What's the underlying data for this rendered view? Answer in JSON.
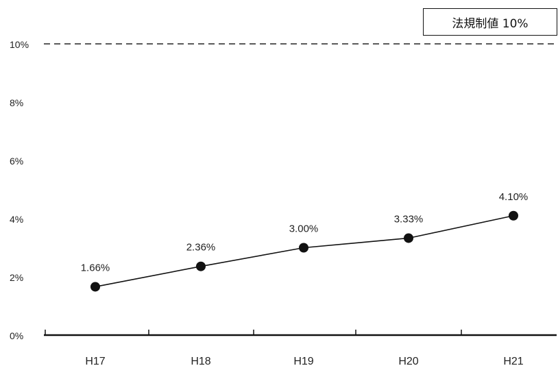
{
  "chart_data": {
    "type": "line",
    "title": "",
    "xlabel": "",
    "ylabel": "",
    "categories": [
      "H17",
      "H18",
      "H19",
      "H20",
      "H21"
    ],
    "series": [
      {
        "values": [
          1.66,
          2.36,
          3.0,
          3.33,
          4.1
        ],
        "labels": [
          "1.66%",
          "2.36%",
          "3.00%",
          "3.33%",
          "4.10%"
        ]
      }
    ],
    "yticks": [
      0,
      2,
      4,
      6,
      8,
      10
    ],
    "ytick_labels": [
      "0%",
      "2%",
      "4%",
      "6%",
      "8%",
      "10%"
    ],
    "ylim": [
      0,
      10
    ],
    "grid": false,
    "reference_line": {
      "value": 10,
      "style": "dashed",
      "label": "法規制値 10%"
    }
  }
}
